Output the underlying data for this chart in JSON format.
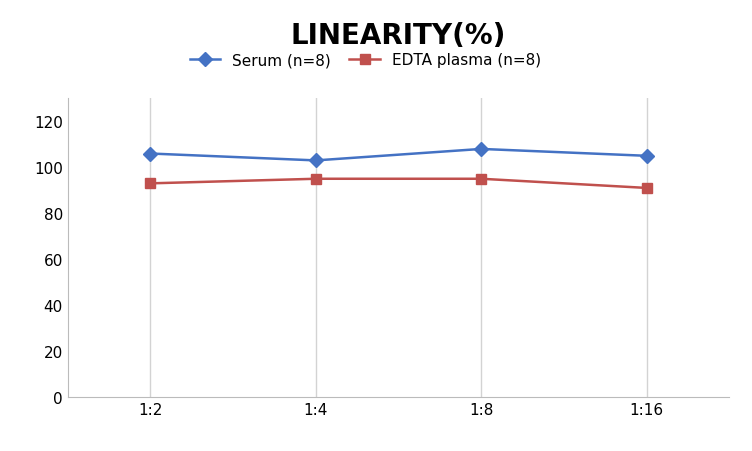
{
  "title": "LINEARITY(%)",
  "title_fontsize": 20,
  "title_fontweight": "bold",
  "x_labels": [
    "1:2",
    "1:4",
    "1:8",
    "1:16"
  ],
  "x_positions": [
    0,
    1,
    2,
    3
  ],
  "serum_values": [
    106,
    103,
    108,
    105
  ],
  "edta_values": [
    93,
    95,
    95,
    91
  ],
  "serum_label": "Serum (n=8)",
  "edta_label": "EDTA plasma (n=8)",
  "serum_color": "#4472C4",
  "edta_color": "#C0504D",
  "ylim": [
    0,
    130
  ],
  "yticks": [
    0,
    20,
    40,
    60,
    80,
    100,
    120
  ],
  "grid_color": "#D3D3D3",
  "bg_color": "#FFFFFF",
  "legend_fontsize": 11,
  "axis_fontsize": 11,
  "marker_size": 7,
  "line_width": 1.8
}
